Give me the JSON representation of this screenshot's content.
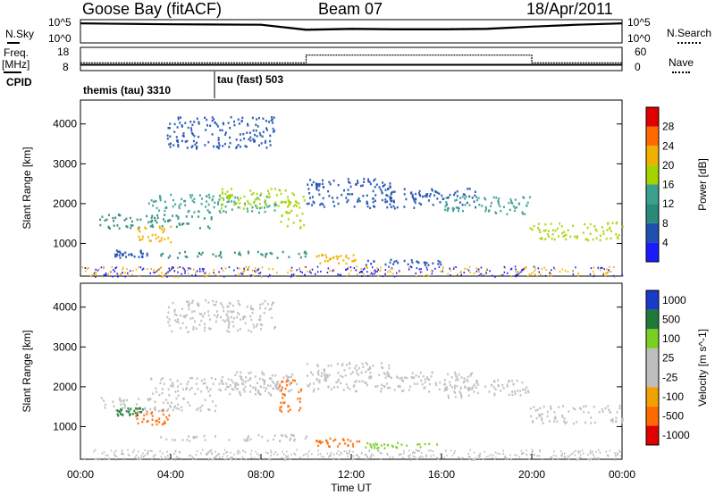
{
  "header": {
    "station": "Goose Bay (fitACF)",
    "beam": "Beam 07",
    "date": "18/Apr/2011"
  },
  "labels": {
    "nsky": "N.Sky",
    "nsearch": "N.Search",
    "freq": "Freq.",
    "freq_unit": "[MHz]",
    "nave": "Nave",
    "cpid": "CPID",
    "noise_top": "10^5",
    "noise_bottom": "10^0",
    "freq_top": "18",
    "freq_bottom": "8",
    "nave_top": "60",
    "nave_bottom": "0"
  },
  "cpid_segments": [
    {
      "label": "themis (tau) 3310",
      "start_hour": 0,
      "end_hour": 6
    },
    {
      "label": "tau (fast) 503",
      "start_hour": 6,
      "end_hour": 24
    }
  ],
  "colors": {
    "power": [
      "#1b1bff",
      "#1f50b0",
      "#2a8a7a",
      "#3aa090",
      "#a6d400",
      "#f0b000",
      "#ff6a00",
      "#e00000"
    ],
    "velocity": [
      "#e00000",
      "#ff6a00",
      "#f0a000",
      "#bebebe",
      "#bebebe",
      "#7ad020",
      "#1f7a3a",
      "#1a3ac8"
    ]
  },
  "chart_data": [
    {
      "type": "line",
      "name": "noise_panel",
      "ylim_log10": [
        0,
        5
      ],
      "series": [
        {
          "name": "N.Sky",
          "x": [
            0,
            4,
            8,
            10,
            12,
            14,
            16,
            18,
            20,
            22,
            24
          ],
          "values_log10": [
            4.2,
            4.0,
            3.9,
            2.8,
            3.0,
            2.9,
            2.9,
            3.0,
            3.5,
            3.9,
            4.2
          ]
        },
        {
          "name": "N.Search",
          "x": [
            0,
            4,
            8,
            10,
            12,
            14,
            16,
            18,
            20,
            22,
            24
          ],
          "values_log10": [
            4.3,
            4.1,
            4.0,
            3.0,
            3.2,
            3.1,
            3.1,
            3.2,
            3.6,
            4.0,
            4.3
          ]
        }
      ]
    },
    {
      "type": "line",
      "name": "frequency_nave_panel",
      "series": [
        {
          "name": "Freq.",
          "unit": "MHz",
          "ylim": [
            8,
            18
          ],
          "x": [
            0,
            24
          ],
          "values": [
            10.5,
            10.5
          ]
        },
        {
          "name": "Nave",
          "ylim": [
            0,
            60
          ],
          "x": [
            0,
            10,
            10,
            20,
            20,
            24
          ],
          "values": [
            20,
            20,
            40,
            40,
            20,
            20
          ]
        }
      ]
    },
    {
      "type": "heatmap",
      "name": "power_panel",
      "xlabel": "",
      "ylabel": "Slant Range [km]",
      "xlim_hours": [
        0,
        24
      ],
      "ylim_km": [
        180,
        4600
      ],
      "yticks": [
        1000,
        2000,
        3000,
        4000
      ],
      "colorbar": {
        "label": "Power [dB]",
        "ticks": [
          4,
          8,
          12,
          16,
          20,
          24,
          28
        ],
        "range": [
          0,
          32
        ]
      },
      "regions": [
        {
          "t0": 0.8,
          "t1": 6.0,
          "r0": 1400,
          "r1": 1750,
          "power": 10
        },
        {
          "t0": 3.0,
          "t1": 8.8,
          "r0": 1800,
          "r1": 2250,
          "power": 14
        },
        {
          "t0": 6.2,
          "t1": 9.6,
          "r0": 1900,
          "r1": 2400,
          "power": 16
        },
        {
          "t0": 8.8,
          "t1": 9.9,
          "r0": 1400,
          "r1": 2200,
          "power": 18
        },
        {
          "t0": 2.4,
          "t1": 4.0,
          "r0": 1050,
          "r1": 1450,
          "power": 20
        },
        {
          "t0": 3.8,
          "t1": 8.6,
          "r0": 3400,
          "r1": 4200,
          "power": 6
        },
        {
          "t0": 10.0,
          "t1": 13.8,
          "r0": 1900,
          "r1": 2650,
          "power": 6
        },
        {
          "t0": 13.2,
          "t1": 17.5,
          "r0": 1900,
          "r1": 2400,
          "power": 6
        },
        {
          "t0": 16.0,
          "t1": 19.9,
          "r0": 1750,
          "r1": 2200,
          "power": 12
        },
        {
          "t0": 19.9,
          "t1": 24.0,
          "r0": 1100,
          "r1": 1550,
          "power": 18
        },
        {
          "t0": 10.4,
          "t1": 12.4,
          "r0": 520,
          "r1": 740,
          "power": 22
        },
        {
          "t0": 1.5,
          "t1": 3.0,
          "r0": 650,
          "r1": 850,
          "power": 6
        },
        {
          "t0": 3.5,
          "t1": 10.0,
          "r0": 650,
          "r1": 820,
          "power": 8
        },
        {
          "t0": 12.5,
          "t1": 16.0,
          "r0": 480,
          "r1": 620,
          "power": 6
        }
      ]
    },
    {
      "type": "heatmap",
      "name": "velocity_panel",
      "xlabel": "Time UT",
      "ylabel": "Slant Range [km]",
      "xlim_hours": [
        0,
        24
      ],
      "ylim_km": [
        180,
        4600
      ],
      "yticks": [
        1000,
        2000,
        3000,
        4000
      ],
      "xticks": [
        "00:00",
        "04:00",
        "08:00",
        "12:00",
        "16:00",
        "20:00",
        "00:00"
      ],
      "colorbar": {
        "label": "Velocity [m s^-1]",
        "ticks": [
          "1000",
          "500",
          "100",
          "25",
          "-25",
          "-100",
          "-500",
          "-1000"
        ]
      },
      "regions": [
        {
          "t0": 0.8,
          "t1": 6.0,
          "r0": 1400,
          "r1": 1750,
          "velocity": 0
        },
        {
          "t0": 3.0,
          "t1": 8.8,
          "r0": 1800,
          "r1": 2250,
          "velocity": 0
        },
        {
          "t0": 6.2,
          "t1": 9.6,
          "r0": 1900,
          "r1": 2400,
          "velocity": 0
        },
        {
          "t0": 8.8,
          "t1": 9.9,
          "r0": 1400,
          "r1": 2200,
          "velocity": -150
        },
        {
          "t0": 2.4,
          "t1": 4.0,
          "r0": 1050,
          "r1": 1450,
          "velocity": -200
        },
        {
          "t0": 1.6,
          "t1": 2.8,
          "r0": 1300,
          "r1": 1500,
          "velocity": 300
        },
        {
          "t0": 3.8,
          "t1": 8.6,
          "r0": 3400,
          "r1": 4200,
          "velocity": 0
        },
        {
          "t0": 10.0,
          "t1": 13.8,
          "r0": 1900,
          "r1": 2650,
          "velocity": 0
        },
        {
          "t0": 13.2,
          "t1": 17.5,
          "r0": 1900,
          "r1": 2400,
          "velocity": 0
        },
        {
          "t0": 16.0,
          "t1": 19.9,
          "r0": 1750,
          "r1": 2200,
          "velocity": 0
        },
        {
          "t0": 19.9,
          "t1": 24.0,
          "r0": 1100,
          "r1": 1550,
          "velocity": 0
        },
        {
          "t0": 10.4,
          "t1": 12.4,
          "r0": 520,
          "r1": 740,
          "velocity": -200
        },
        {
          "t0": 3.5,
          "t1": 10.0,
          "r0": 650,
          "r1": 820,
          "velocity": 0
        },
        {
          "t0": 12.5,
          "t1": 16.0,
          "r0": 480,
          "r1": 620,
          "velocity": 50
        }
      ]
    }
  ]
}
